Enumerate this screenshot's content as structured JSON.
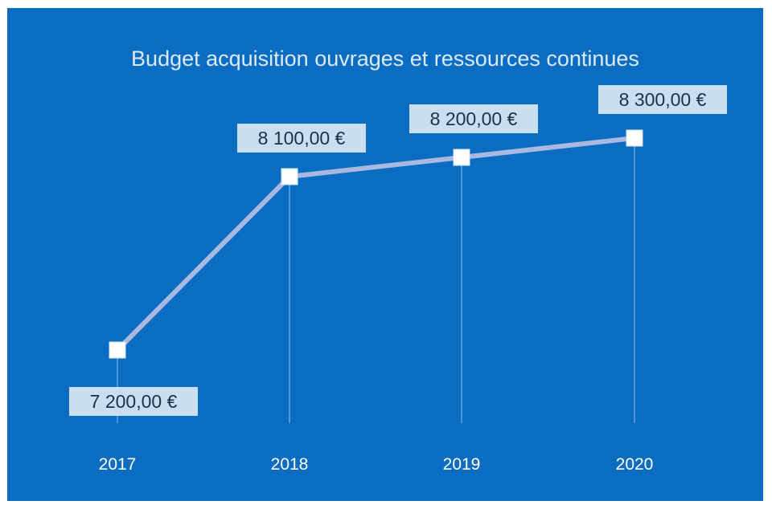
{
  "chart_data": {
    "type": "line",
    "title": "Budget acquisition ouvrages et ressources continues",
    "categories": [
      "2017",
      "2018",
      "2019",
      "2020"
    ],
    "values": [
      7200,
      8100,
      8200,
      8300
    ],
    "data_labels": [
      "7 200,00 €",
      "8 100,00 €",
      "8 200,00 €",
      "8 300,00 €"
    ],
    "ylim": [
      6600,
      8600
    ],
    "grid": false,
    "drop_lines": true,
    "legend": "none",
    "colors": {
      "background": "#0a6dc2",
      "line": "#a9b8e0",
      "marker": "#ffffff",
      "drop_line": "#4f98d8",
      "label_box": "#c9dff1",
      "label_text": "#1f2f45",
      "title": "#dce9f7",
      "axis_text": "#ffffff"
    }
  }
}
